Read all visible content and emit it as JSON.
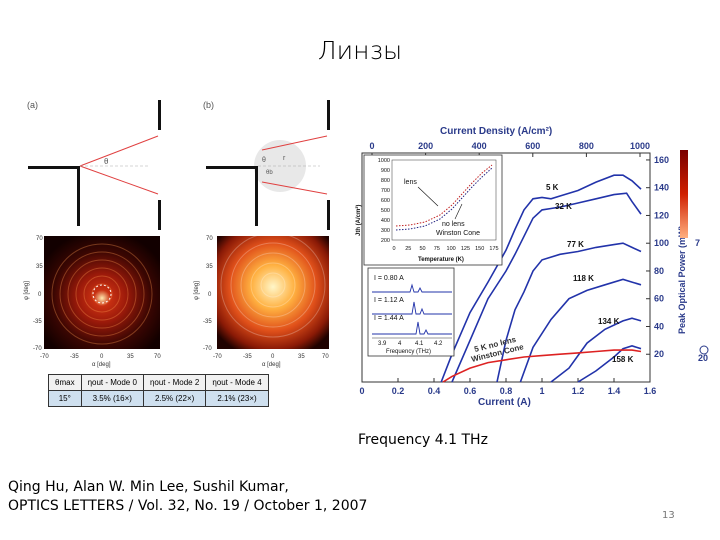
{
  "slide": {
    "title": "Линзы",
    "caption": "Frequency 4.1 THz",
    "reference_line1": "Qing Hu, Alan W. Min Lee,  Sushil Kumar,",
    "reference_line2": "OPTICS LETTERS / Vol. 32, No. 19 / October 1, 2007",
    "page_number": "13"
  },
  "left_figure": {
    "panel_a_label": "(a)",
    "panel_b_label": "(b)",
    "angle_a_label": "θ",
    "angle_b_labels": [
      "θ",
      "θb",
      "r"
    ],
    "map_axis_ticks_y": [
      "70",
      "35",
      "0",
      "-35",
      "-70"
    ],
    "map_axis_ticks_x": [
      "-70",
      "-35",
      "0",
      "35",
      "70"
    ],
    "map_ylabel": "φ [deg]",
    "map_xlabel": "α [deg]",
    "table": {
      "headers": [
        "θmax",
        "ηout - Mode 0",
        "ηout - Mode 2",
        "ηout - Mode 4"
      ],
      "row": [
        "15°",
        "3.5% (16×)",
        "2.5% (22×)",
        "2.1% (23×)"
      ]
    }
  },
  "chart_data": {
    "type": "line",
    "top_axis_label": "Current Density (A/cm²)",
    "top_ticks": [
      "0",
      "200",
      "400",
      "600",
      "800",
      "1000"
    ],
    "xlabel": "Current (A)",
    "x_ticks": [
      "0",
      "0.2",
      "0.4",
      "0.6",
      "0.8",
      "1",
      "1.2",
      "1.4",
      "1.6"
    ],
    "xlim": [
      0,
      1.6
    ],
    "ylabel_right": "Peak Optical Power (mW)",
    "y_ticks": [
      "20",
      "40",
      "60",
      "80",
      "100",
      "120",
      "140",
      "160"
    ],
    "ylim": [
      0,
      165
    ],
    "axis_edge_labels": [
      "7",
      "20"
    ],
    "series": [
      {
        "name": "5 K",
        "color": "#2233aa",
        "points": [
          [
            0.44,
            0
          ],
          [
            0.5,
            20
          ],
          [
            0.6,
            50
          ],
          [
            0.7,
            72
          ],
          [
            0.8,
            95
          ],
          [
            0.85,
            110
          ],
          [
            0.9,
            124
          ],
          [
            0.95,
            132
          ],
          [
            1.0,
            133
          ],
          [
            1.05,
            132
          ],
          [
            1.1,
            134
          ],
          [
            1.2,
            138
          ],
          [
            1.3,
            144
          ],
          [
            1.4,
            149
          ],
          [
            1.45,
            149
          ],
          [
            1.5,
            145
          ],
          [
            1.55,
            139
          ]
        ]
      },
      {
        "name": "32 K",
        "color": "#2233aa",
        "points": [
          [
            0.5,
            0
          ],
          [
            0.6,
            30
          ],
          [
            0.7,
            60
          ],
          [
            0.8,
            80
          ],
          [
            0.85,
            92
          ],
          [
            0.9,
            105
          ],
          [
            0.95,
            118
          ],
          [
            1.0,
            124
          ],
          [
            1.05,
            125
          ],
          [
            1.1,
            126
          ],
          [
            1.2,
            129
          ],
          [
            1.3,
            132
          ],
          [
            1.4,
            135
          ],
          [
            1.47,
            136
          ],
          [
            1.5,
            130
          ],
          [
            1.55,
            121
          ]
        ]
      },
      {
        "name": "77 K",
        "color": "#2233aa",
        "points": [
          [
            0.75,
            0
          ],
          [
            0.8,
            30
          ],
          [
            0.85,
            52
          ],
          [
            0.9,
            65
          ],
          [
            0.95,
            80
          ],
          [
            1.0,
            88
          ],
          [
            1.1,
            92
          ],
          [
            1.2,
            94
          ],
          [
            1.3,
            97
          ],
          [
            1.4,
            99
          ],
          [
            1.45,
            100
          ],
          [
            1.5,
            97
          ],
          [
            1.55,
            94
          ]
        ]
      },
      {
        "name": "118 K",
        "color": "#2233aa",
        "points": [
          [
            0.88,
            0
          ],
          [
            0.95,
            25
          ],
          [
            1.05,
            45
          ],
          [
            1.15,
            60
          ],
          [
            1.25,
            66
          ],
          [
            1.35,
            70
          ],
          [
            1.45,
            74
          ],
          [
            1.5,
            72
          ],
          [
            1.55,
            70
          ]
        ]
      },
      {
        "name": "134 K",
        "color": "#2233aa",
        "points": [
          [
            1.05,
            0
          ],
          [
            1.15,
            10
          ],
          [
            1.25,
            28
          ],
          [
            1.35,
            38
          ],
          [
            1.45,
            44
          ],
          [
            1.5,
            46
          ],
          [
            1.55,
            44
          ]
        ]
      },
      {
        "name": "158 K",
        "color": "#2233aa",
        "points": [
          [
            1.2,
            0
          ],
          [
            1.3,
            8
          ],
          [
            1.4,
            18
          ],
          [
            1.45,
            24
          ],
          [
            1.5,
            26
          ],
          [
            1.55,
            24
          ]
        ]
      },
      {
        "name": "5 K no lens Winston Cone",
        "color": "#dd2222",
        "points": [
          [
            0.45,
            0
          ],
          [
            0.5,
            4
          ],
          [
            0.6,
            10
          ],
          [
            0.7,
            14
          ],
          [
            0.8,
            16
          ],
          [
            0.9,
            18
          ],
          [
            1.0,
            19
          ],
          [
            1.1,
            20
          ],
          [
            1.2,
            21
          ],
          [
            1.3,
            22
          ],
          [
            1.4,
            23
          ],
          [
            1.5,
            23
          ],
          [
            1.55,
            22
          ]
        ]
      }
    ],
    "curve_labels": [
      "5 K",
      "32 K",
      "77 K",
      "118 K",
      "134 K",
      "158 K",
      "5 K no lens",
      "Winston Cone"
    ],
    "inset_threshold": {
      "ylabel": "Jth (A/cm²)",
      "xlabel": "Temperature (K)",
      "x_ticks": [
        "0",
        "25",
        "50",
        "75",
        "100",
        "125",
        "150",
        "175"
      ],
      "y_ticks": [
        "200",
        "300",
        "400",
        "500",
        "600",
        "700",
        "800",
        "900",
        "1000"
      ],
      "labels": [
        "lens",
        "no lens",
        "Winston Cone"
      ]
    },
    "inset_spectra": {
      "labels": [
        "I = 0.80 A",
        "I = 1.12 A",
        "I = 1.44 A"
      ],
      "x_ticks": [
        "3.9",
        "4",
        "4.1",
        "4.2"
      ],
      "xlabel": "Frequency (THz)"
    }
  }
}
